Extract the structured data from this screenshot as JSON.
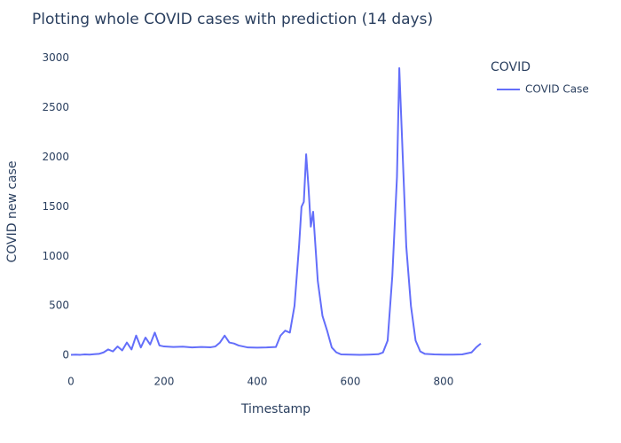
{
  "chart_data": {
    "type": "line",
    "title": "Plotting whole COVID cases with prediction (14 days)",
    "x_label": "Timestamp",
    "y_label": "COVID new case",
    "legend_title": "COVID",
    "legend_position": "top-right",
    "grid": false,
    "x": [
      0,
      10,
      20,
      30,
      40,
      50,
      60,
      70,
      80,
      90,
      100,
      110,
      120,
      130,
      140,
      150,
      160,
      170,
      180,
      190,
      200,
      220,
      240,
      260,
      280,
      300,
      310,
      320,
      330,
      340,
      350,
      360,
      380,
      400,
      420,
      440,
      450,
      460,
      470,
      480,
      490,
      495,
      500,
      505,
      510,
      515,
      520,
      525,
      530,
      540,
      550,
      560,
      570,
      580,
      600,
      620,
      640,
      660,
      670,
      680,
      690,
      700,
      705,
      710,
      715,
      720,
      730,
      740,
      750,
      760,
      780,
      800,
      820,
      840,
      850,
      860,
      870,
      880
    ],
    "series": [
      {
        "name": "COVID Case",
        "color": "#636efa",
        "values": [
          5,
          8,
          6,
          10,
          8,
          12,
          15,
          30,
          60,
          40,
          90,
          50,
          130,
          60,
          200,
          80,
          180,
          110,
          230,
          100,
          90,
          85,
          88,
          80,
          85,
          82,
          90,
          130,
          200,
          130,
          120,
          100,
          80,
          78,
          80,
          85,
          200,
          250,
          230,
          500,
          1120,
          1500,
          1550,
          2030,
          1700,
          1300,
          1450,
          1100,
          750,
          400,
          250,
          80,
          30,
          10,
          8,
          6,
          8,
          12,
          30,
          150,
          800,
          1800,
          2900,
          2300,
          1700,
          1100,
          500,
          150,
          40,
          15,
          10,
          8,
          8,
          10,
          20,
          30,
          80,
          120
        ]
      }
    ],
    "xlim": [
      0,
      882
    ],
    "ylim": [
      -160,
      3060
    ],
    "xticks": [
      0,
      200,
      400,
      600,
      800
    ],
    "yticks": [
      0,
      500,
      1000,
      1500,
      2000,
      2500,
      3000
    ]
  }
}
